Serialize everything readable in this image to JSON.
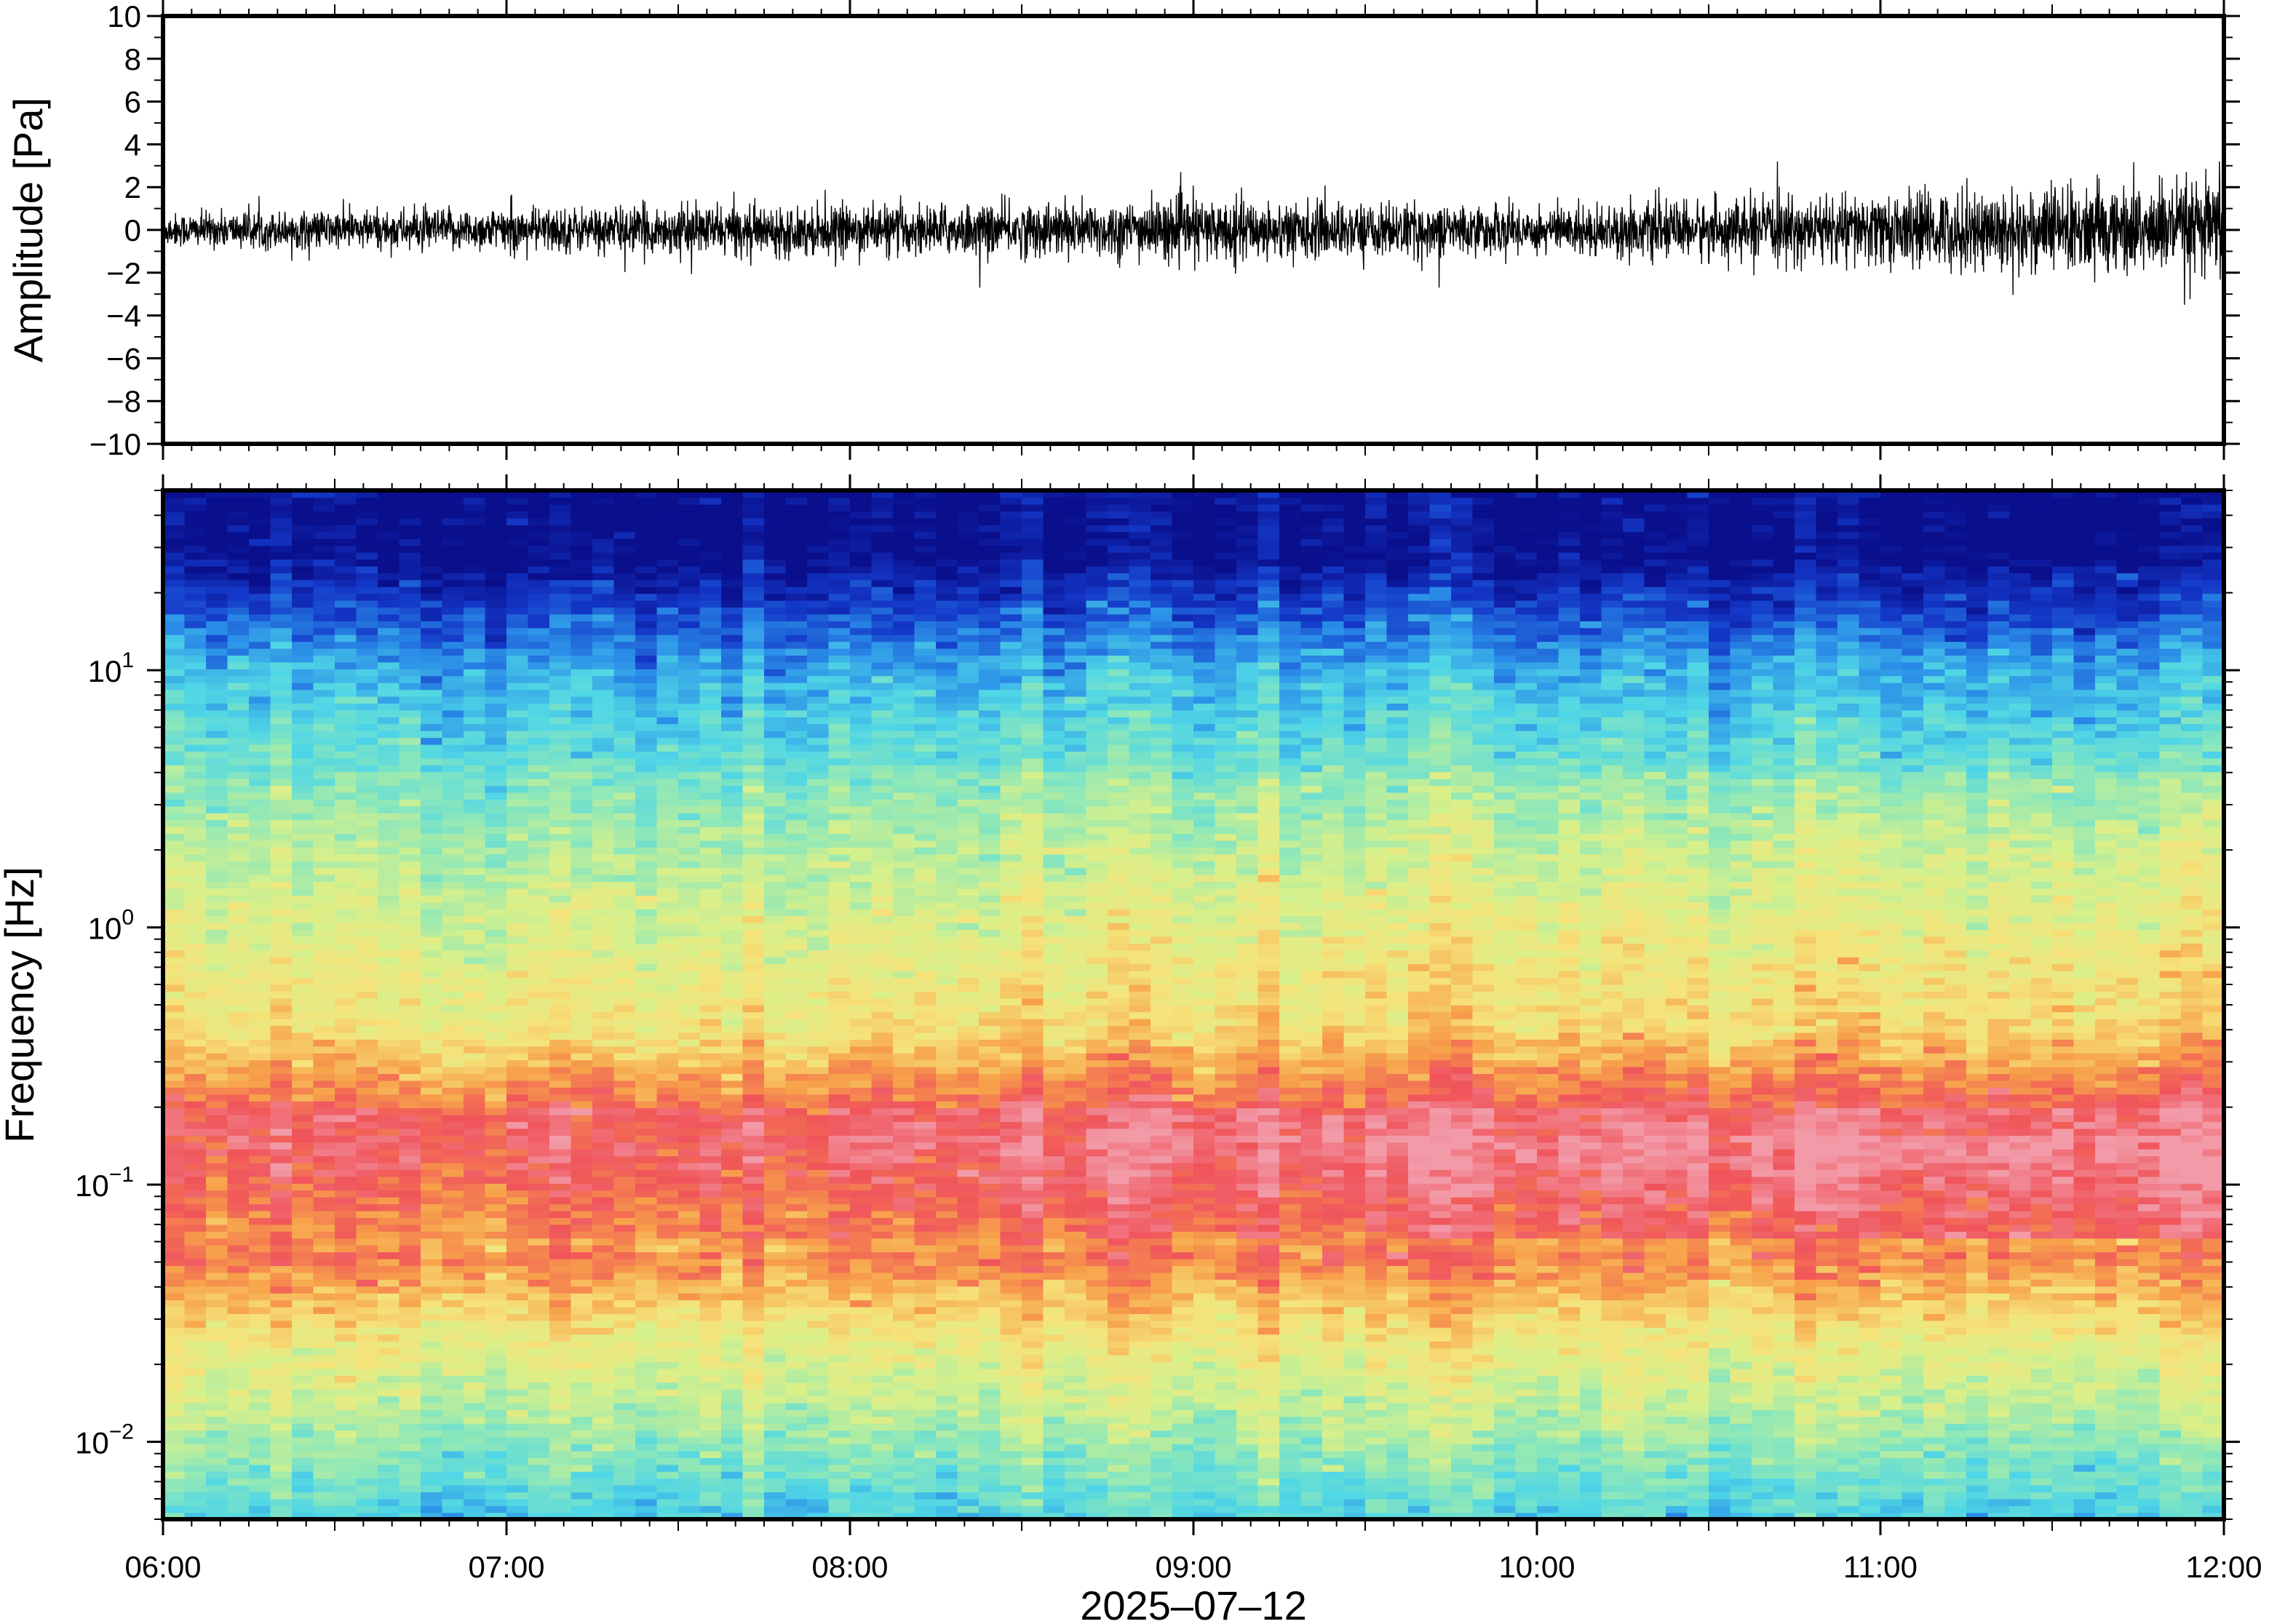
{
  "chart_data": [
    {
      "type": "line",
      "panel": "waveform",
      "ylabel": "Amplitude [Pa]",
      "xlabel": "",
      "ylim": [
        -10,
        10
      ],
      "yticks": [
        -10,
        -8,
        -6,
        -4,
        -2,
        0,
        2,
        4,
        6,
        8,
        10
      ],
      "ytick_labels": [
        "−10",
        "−8",
        "−6",
        "−4",
        "−2",
        "0",
        "2",
        "4",
        "6",
        "8",
        "10"
      ],
      "xlim_hours": [
        6,
        12
      ],
      "envelope": {
        "x": [
          "06:00",
          "06:30",
          "07:00",
          "07:30",
          "08:00",
          "08:30",
          "09:00",
          "09:30",
          "10:00",
          "10:30",
          "11:00",
          "11:30",
          "12:00"
        ],
        "x_hours": [
          6,
          6.5,
          7,
          7.5,
          8,
          8.5,
          9,
          9.5,
          10,
          10.5,
          11,
          11.5,
          12
        ],
        "amplitude": [
          0.7,
          0.8,
          0.9,
          1.0,
          1.0,
          1.1,
          1.3,
          1.1,
          1.0,
          1.2,
          1.5,
          1.8,
          2.0
        ],
        "peak_max": 3.2,
        "peak_min": -3.5
      },
      "grid": false
    },
    {
      "type": "heatmap",
      "panel": "spectrogram",
      "ylabel": "Frequency [Hz]",
      "xlabel": "2025–07–12",
      "yscale": "log",
      "ylim": [
        0.005,
        50
      ],
      "yticks": [
        0.01,
        0.1,
        1,
        10
      ],
      "ytick_labels": [
        {
          "base": "10",
          "exp": "−2"
        },
        {
          "base": "10",
          "exp": "−1"
        },
        {
          "base": "10",
          "exp": "0"
        },
        {
          "base": "10",
          "exp": "1"
        }
      ],
      "xlim_hours": [
        6,
        12
      ],
      "xticks": [
        "06:00",
        "07:00",
        "08:00",
        "09:00",
        "10:00",
        "11:00",
        "12:00"
      ],
      "xticks_hours": [
        6,
        7,
        8,
        9,
        10,
        11,
        12
      ],
      "colormap": [
        "#0a0f8c",
        "#1438c8",
        "#2b8fe8",
        "#4fd6e6",
        "#8fe8b8",
        "#d8f08a",
        "#f6e27a",
        "#f7a24a",
        "#f0545a",
        "#f29aa8"
      ],
      "grid": false
    }
  ]
}
